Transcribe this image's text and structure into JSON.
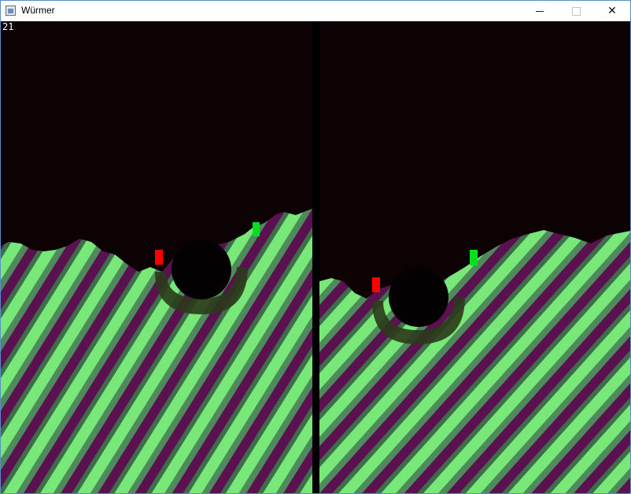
{
  "window": {
    "title": "Würmer"
  },
  "titlebar": {
    "minimize_glyph": "—",
    "maximize_glyph": "☐",
    "close_glyph": "✕"
  },
  "hud": {
    "counter": "21"
  },
  "colors": {
    "sky": "#0c0204",
    "divider": "#000000",
    "crater_dark": "#030102",
    "crater_rim": "#2b3a1a",
    "stripe_light": "#7cf07a",
    "stripe_mid": "#5a9e63",
    "stripe_dark": "#5b1050",
    "red_player": "#ff0000",
    "green_player": "#00e020"
  },
  "icons": {
    "app": "window-app-icon",
    "minimize": "minimize-icon",
    "maximize": "maximize-icon",
    "close": "close-icon"
  },
  "panels": [
    {
      "name": "left-view",
      "red_worm": "red",
      "green_worm": "green"
    },
    {
      "name": "right-view",
      "red_worm": "red",
      "green_worm": "green"
    }
  ]
}
